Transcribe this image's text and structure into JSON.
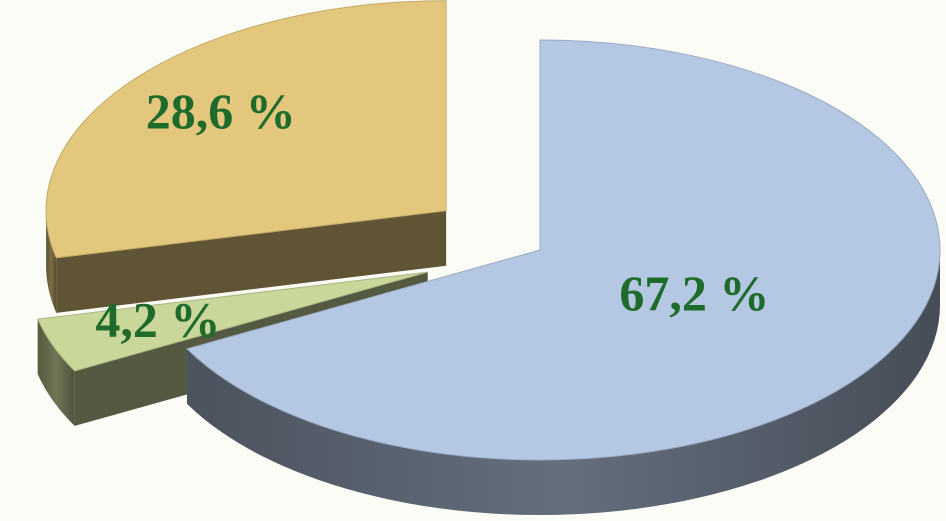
{
  "chart_data": {
    "type": "pie",
    "values": [
      67.2,
      4.2,
      28.6
    ],
    "value_labels": [
      "67,2 %",
      "4,2 %",
      "28,6 %"
    ],
    "colors": [
      "#b5c8e3",
      "#c9d79b",
      "#e3c77c"
    ],
    "label_color": "#1f6b2c"
  }
}
